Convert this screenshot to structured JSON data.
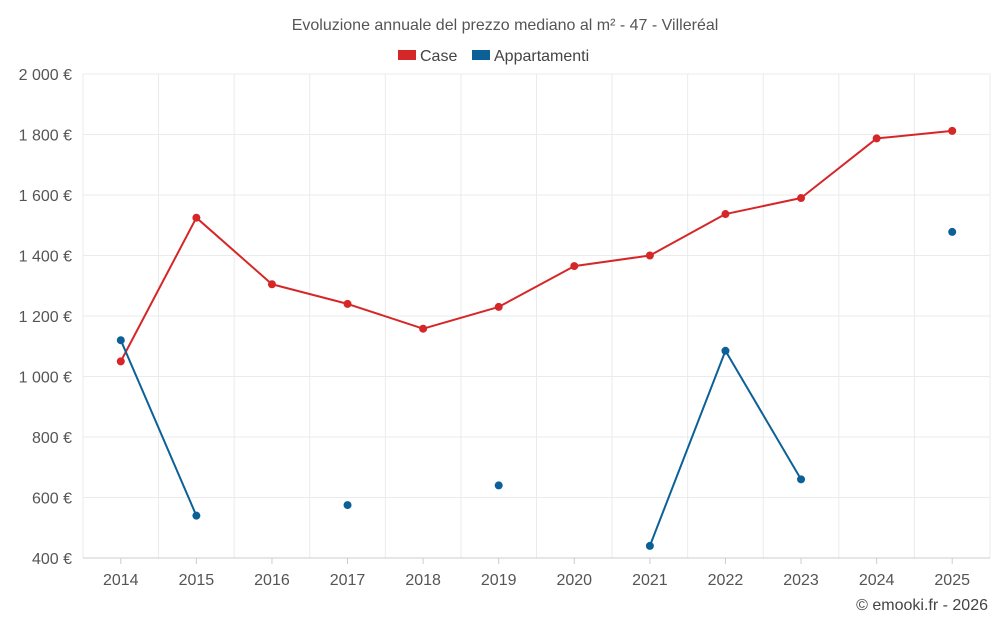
{
  "chart_data": {
    "type": "line",
    "title": "Evoluzione annuale del prezzo mediano al m² - 47 - Villeréal",
    "xlabel": "",
    "ylabel": "",
    "categories": [
      "2014",
      "2015",
      "2016",
      "2017",
      "2018",
      "2019",
      "2020",
      "2021",
      "2022",
      "2023",
      "2024",
      "2025"
    ],
    "ylim": [
      400,
      2000
    ],
    "yticks": [
      400,
      600,
      800,
      1000,
      1200,
      1400,
      1600,
      1800,
      2000
    ],
    "ytick_labels": [
      "400 €",
      "600 €",
      "800 €",
      "1 000 €",
      "1 200 €",
      "1 400 €",
      "1 600 €",
      "1 800 €",
      "2 000 €"
    ],
    "grid": true,
    "legend_position": "top-center",
    "series": [
      {
        "name": "Case",
        "color": "#d62728",
        "values": [
          1050,
          1525,
          1305,
          1240,
          1158,
          1230,
          1365,
          1400,
          1537,
          1590,
          1787,
          1812
        ]
      },
      {
        "name": "Appartamenti",
        "color": "#0b6197",
        "values": [
          1120,
          540,
          null,
          575,
          null,
          640,
          null,
          440,
          1085,
          660,
          null,
          1478
        ]
      }
    ]
  },
  "credit": "© emooki.fr - 2026"
}
